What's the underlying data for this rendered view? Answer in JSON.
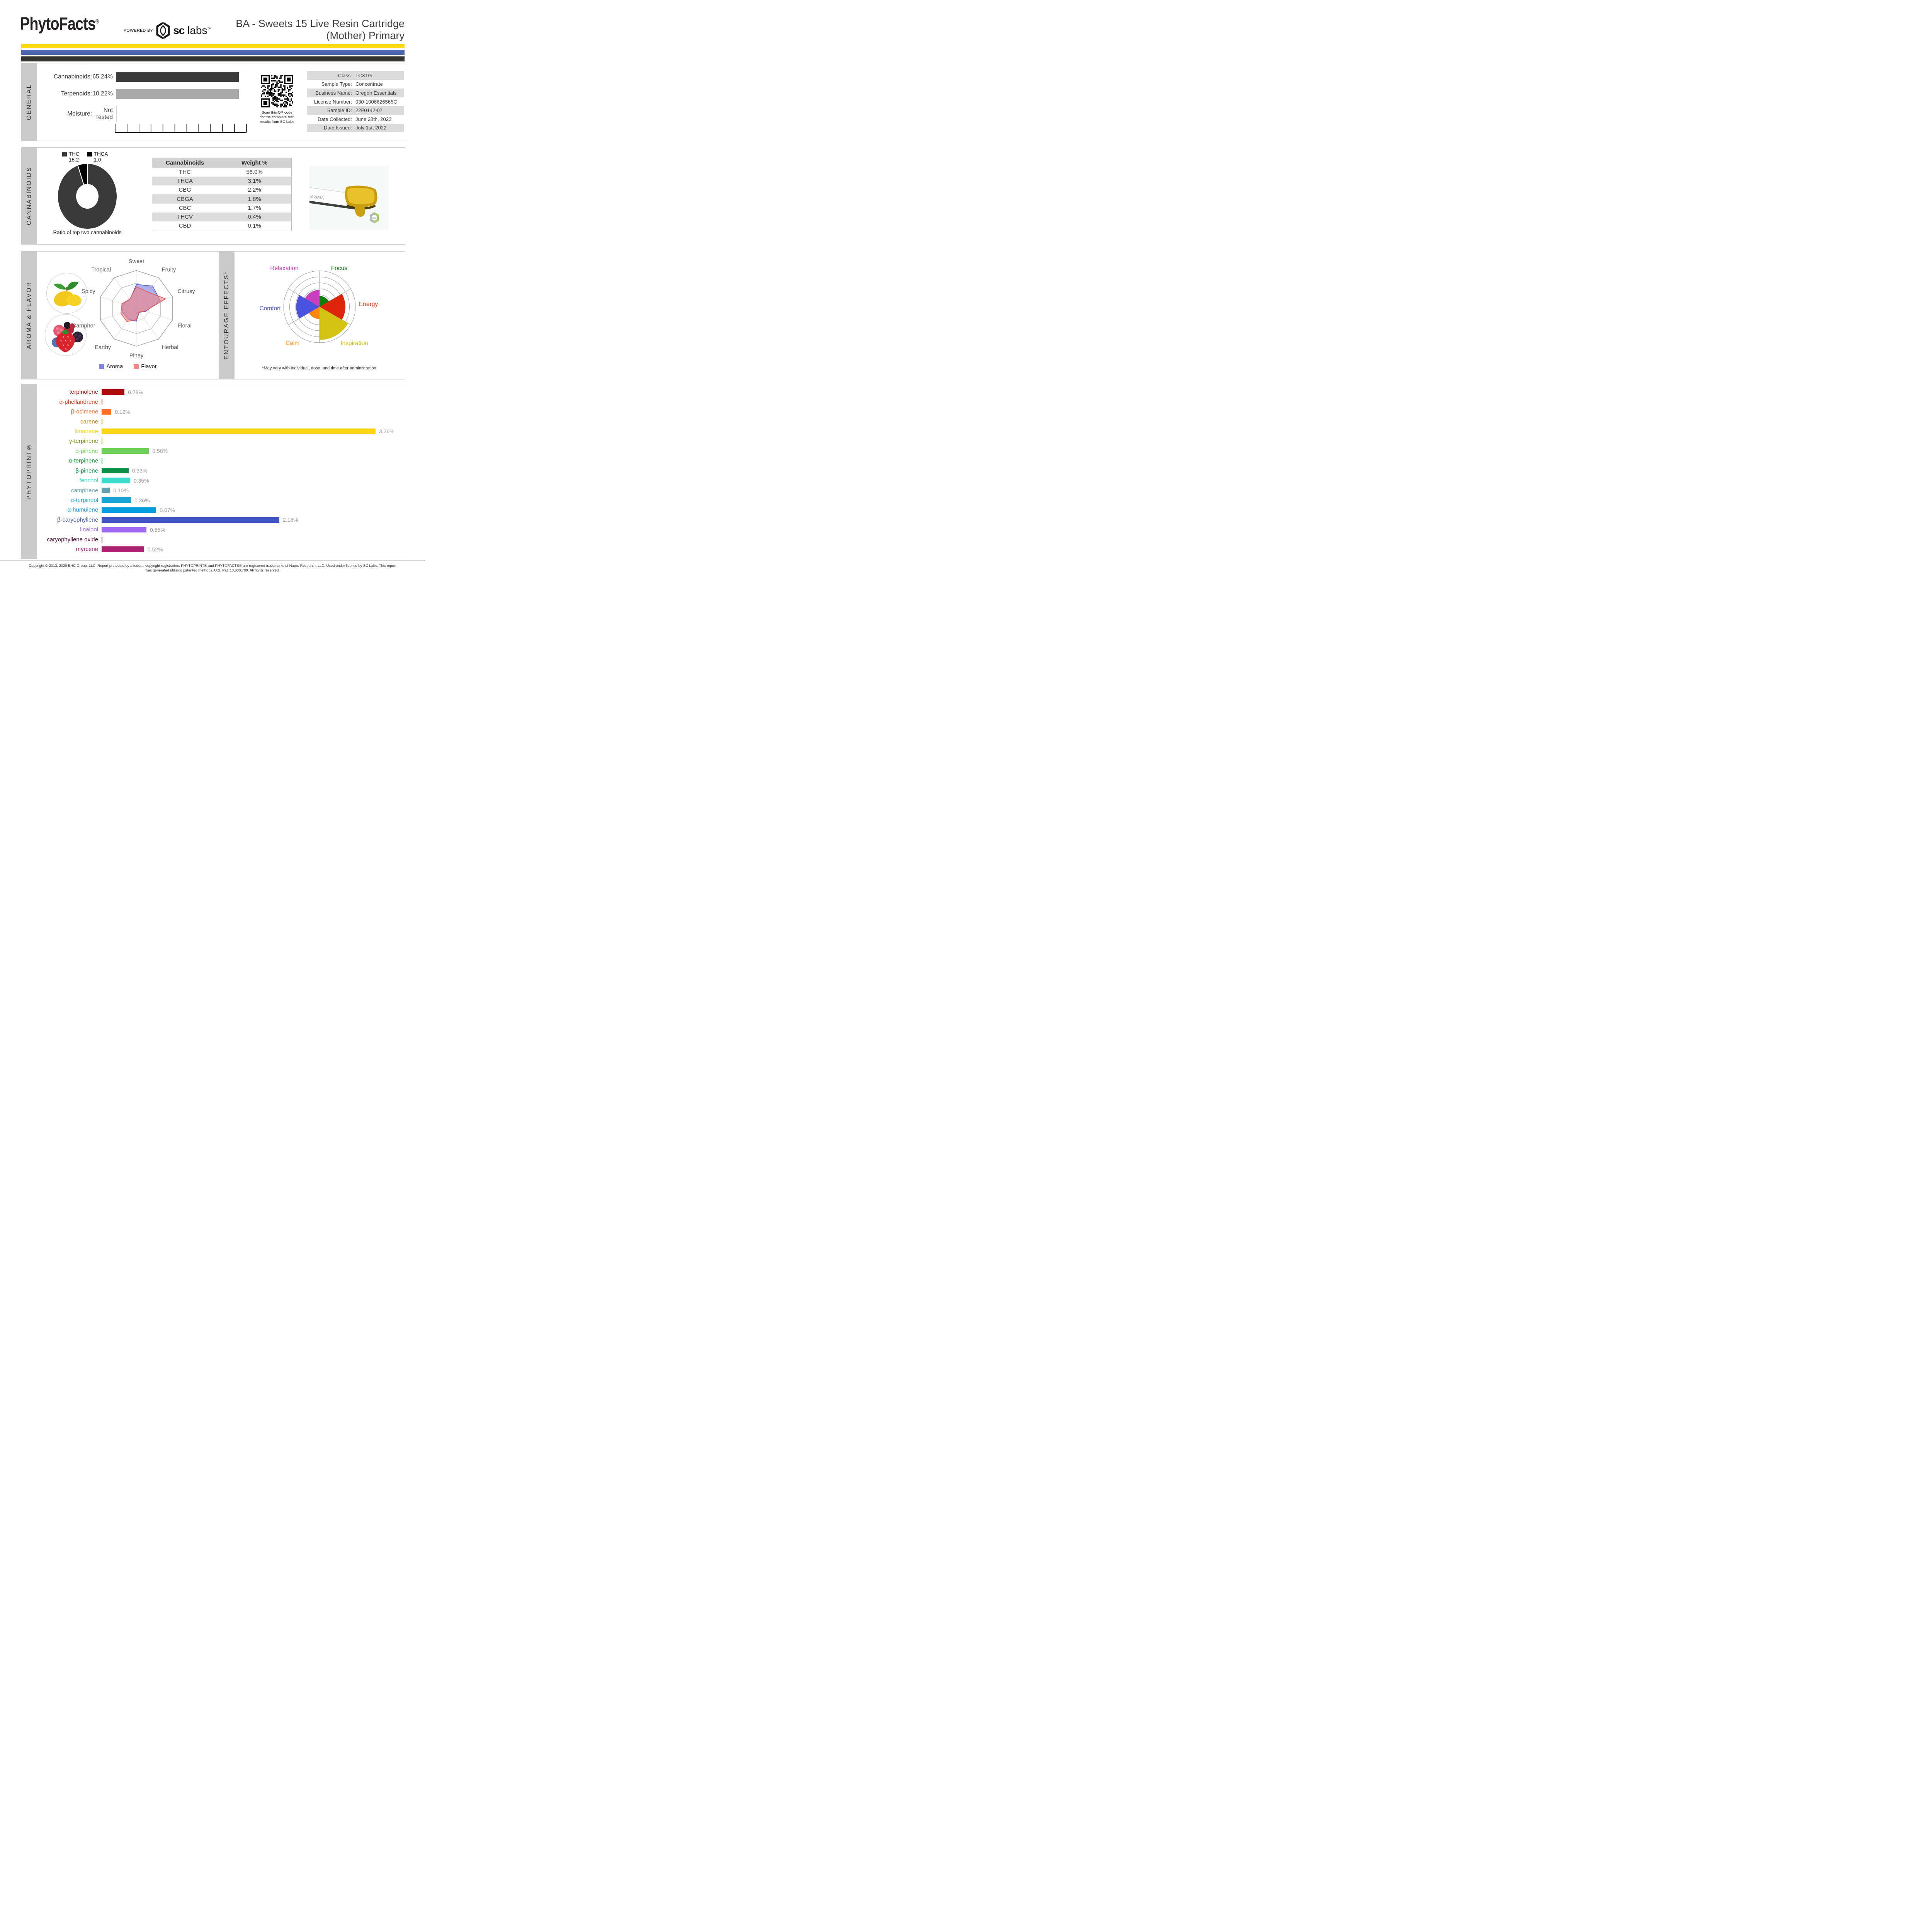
{
  "header": {
    "brand": "PhytoFacts",
    "brand_reg": "®",
    "powered_by": "POWERED BY",
    "lab_bold": "sc",
    "lab_light": " labs",
    "lab_tm": "™",
    "title_line1": "BA - Sweets 15 Live Resin Cartridge",
    "title_line2": "(Mother) Primary"
  },
  "accent_bars": {
    "yellow": "#fcd813",
    "blue": "#4d67b0",
    "dark": "#343431"
  },
  "general": {
    "section_label": "GENERAL",
    "summary": [
      {
        "label": "Cannabinoids:",
        "value": "65.24%",
        "bar": 1,
        "bar_color": "#3a3a3a"
      },
      {
        "label": "Terpenoids:",
        "value": "10.22%",
        "bar": 1,
        "bar_color": "#a8a8a8"
      },
      {
        "label": "Moisture:",
        "value": "Not Tested",
        "bar": 0
      }
    ],
    "qr_caption": [
      "Scan this QR code",
      "for the complete test",
      "results from SC Labs"
    ],
    "info": [
      {
        "label": "Class:",
        "value": "LCX1G"
      },
      {
        "label": "Sample Type:",
        "value": "Concentrate"
      },
      {
        "label": "Business Name:",
        "value": "Oregon Essentials"
      },
      {
        "label": "License Number:",
        "value": "030-1006626565C"
      },
      {
        "label": "Sample ID:",
        "value": "22F0142-07"
      },
      {
        "label": "Date Collected:",
        "value": "June 28th, 2022"
      },
      {
        "label": "Date Issued:",
        "value": "July 1st, 2022"
      }
    ]
  },
  "cannabinoids": {
    "section_label": "CANNABINOIDS",
    "donut_caption": "Ratio of top two cannabinoids",
    "photo_watermark": "sclabs",
    "photo_text": "VWR STAINLE"
  },
  "aroma_flavor": {
    "section_label": "AROMA & FLAVOR"
  },
  "entourage": {
    "section_label": "ENTOURAGE EFFECTS*",
    "footnote": "*May vary with individual, dose, and time after administration."
  },
  "phytoprint": {
    "section_label": "PHYTOPRINT®"
  },
  "footer": {
    "line1": "Copyright © 2013, 2020 BHC Group, LLC. Report protected by a federal copyright registration. PHYTOPRINT® and PHYTOFACTS® are registered trademarks of Napro Research, LLC. Used under license by SC Labs. This report",
    "line2": "was generated utilizing patented methods. U.S. Pat. 10,830,780. All rights reserved."
  },
  "chart_data": [
    {
      "id": "cannabinoid_ratio_donut",
      "type": "pie",
      "donut": true,
      "title": "Ratio of top two cannabinoids",
      "labels": [
        "THC",
        "THCA"
      ],
      "values": [
        18.2,
        1.0
      ],
      "colors": [
        "#3a3a3a",
        "#000000"
      ]
    },
    {
      "id": "cannabinoid_table",
      "type": "table",
      "headers": [
        "Cannabinoids",
        "Weight %"
      ],
      "rows": [
        [
          "THC",
          "56.0%"
        ],
        [
          "THCA",
          "3.1%"
        ],
        [
          "CBG",
          "2.2%"
        ],
        [
          "CBGA",
          "1.8%"
        ],
        [
          "CBC",
          "1.7%"
        ],
        [
          "THCV",
          "0.4%"
        ],
        [
          "CBD",
          "0.1%"
        ]
      ]
    },
    {
      "id": "aroma_flavor_radar",
      "type": "radar",
      "categories": [
        "Sweet",
        "Fruity",
        "Citrusy",
        "Floral",
        "Herbal",
        "Piney",
        "Earthy",
        "Camphor",
        "Spicy",
        "Tropical"
      ],
      "range": [
        0,
        1
      ],
      "rings": 3,
      "series": [
        {
          "name": "Aroma",
          "color": "#8084de",
          "stroke": "#5a5fd0",
          "values": [
            0.63,
            0.73,
            0.66,
            0.26,
            0.13,
            0.34,
            0.36,
            0.38,
            0.38,
            0.29
          ]
        },
        {
          "name": "Flavor",
          "color": "#ef8585",
          "stroke": "#e05555",
          "values": [
            0.57,
            0.53,
            0.81,
            0.24,
            0.12,
            0.3,
            0.43,
            0.43,
            0.4,
            0.3
          ]
        }
      ]
    },
    {
      "id": "entourage_polar",
      "type": "polar_bar",
      "rings": 6,
      "range": [
        0,
        1
      ],
      "categories": [
        "Focus",
        "Energy",
        "Inspiration",
        "Calm",
        "Comfort",
        "Relaxation"
      ],
      "values": [
        0.3,
        0.72,
        0.92,
        0.34,
        0.65,
        0.47
      ],
      "colors": [
        "#0a7d0a",
        "#dd250b",
        "#d3c414",
        "#fe8812",
        "#4a52dd",
        "#c83fc0"
      ],
      "label_colors": [
        "#0a7d0a",
        "#e3270c",
        "#c9bd13",
        "#fd8d19",
        "#4a52dd",
        "#c43fb9"
      ]
    },
    {
      "id": "phytoprint_terpenes",
      "type": "bar",
      "orientation": "horizontal",
      "unit": "%",
      "categories": [
        "terpinolene",
        "α-phellandrene",
        "β-ocimene",
        "carene",
        "limonene",
        "γ-terpinene",
        "α-pinene",
        "α-terpinene",
        "β-pinene",
        "fenchol",
        "camphene",
        "α-terpineol",
        "α-humulene",
        "β-caryophyllene",
        "linalool",
        "caryophyllene oxide",
        "myrcene"
      ],
      "values": [
        0.28,
        0.01,
        0.12,
        0.01,
        3.36,
        0.01,
        0.58,
        0.01,
        0.33,
        0.35,
        0.1,
        0.36,
        0.67,
        2.18,
        0.55,
        0.01,
        0.52
      ],
      "value_labels": [
        "0.28%",
        "",
        "0.12%",
        "",
        "3.36%",
        "",
        "0.58%",
        "",
        "0.33%",
        "0.35%",
        "0.10%",
        "0.36%",
        "0.67%",
        "2.18%",
        "0.55%",
        "",
        "0.52%"
      ],
      "colors": [
        "#ab0c0c",
        "#e63312",
        "#fd6e1e",
        "#bd7a11",
        "#fdd616",
        "#7f8f0c",
        "#6ed258",
        "#12a63e",
        "#0b8f47",
        "#3bdccb",
        "#64a1b2",
        "#18a4d6",
        "#0c9be7",
        "#4257c3",
        "#9d69f2",
        "#570f3f",
        "#a92270"
      ]
    }
  ]
}
